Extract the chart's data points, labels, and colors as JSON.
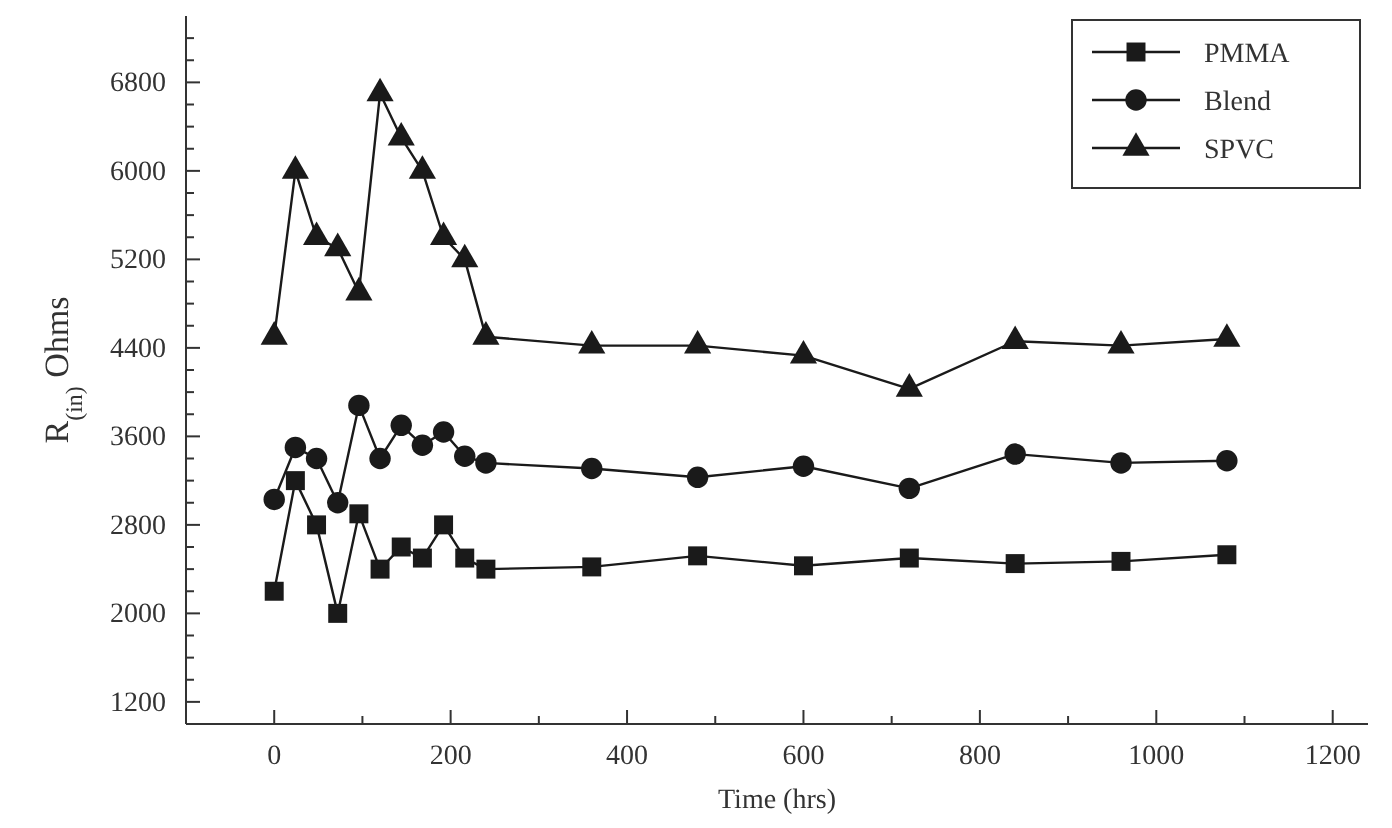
{
  "chart_data": {
    "type": "line",
    "xlabel": "Time (hrs)",
    "ylabel": "R$_{(in)}$ Ohms",
    "x": [
      0,
      24,
      48,
      72,
      96,
      120,
      144,
      168,
      192,
      216,
      240,
      360,
      480,
      600,
      720,
      840,
      960,
      1080
    ],
    "series": [
      {
        "name": "PMMA",
        "color": "#1a1a1a",
        "marker": "square",
        "values": [
          2200,
          3200,
          2800,
          2000,
          2900,
          2400,
          2600,
          2500,
          2800,
          2500,
          2400,
          2420,
          2520,
          2430,
          2500,
          2450,
          2470,
          2530
        ]
      },
      {
        "name": "Blend",
        "color": "#1a1a1a",
        "marker": "circle",
        "values": [
          3030,
          3500,
          3400,
          3000,
          3880,
          3400,
          3700,
          3520,
          3640,
          3420,
          3360,
          3310,
          3230,
          3330,
          3130,
          3440,
          3360,
          3380
        ]
      },
      {
        "name": "SPVC",
        "color": "#1a1a1a",
        "marker": "triangle",
        "values": [
          4500,
          6000,
          5400,
          5300,
          4900,
          6700,
          6300,
          6000,
          5400,
          5200,
          4500,
          4420,
          4420,
          4330,
          4030,
          4460,
          4420,
          4480
        ]
      }
    ],
    "xlim": [
      -100,
      1240
    ],
    "ylim": [
      1000,
      7400
    ],
    "xticks": [
      0,
      {
        "value": 100,
        "label": null
      },
      200,
      {
        "value": 300,
        "label": null
      },
      400,
      {
        "value": 500,
        "label": null
      },
      600,
      {
        "value": 700,
        "label": null
      },
      800,
      {
        "value": 900,
        "label": null
      },
      1000,
      {
        "value": 1100,
        "label": null
      },
      1200
    ],
    "yticks": [
      {
        "value": 1000,
        "label": null
      },
      1200,
      {
        "value": 1400,
        "label": null
      },
      {
        "value": 1600,
        "label": null
      },
      {
        "value": 1800,
        "label": null
      },
      2000,
      {
        "value": 2200,
        "label": null
      },
      {
        "value": 2400,
        "label": null
      },
      {
        "value": 2600,
        "label": null
      },
      2800,
      {
        "value": 3000,
        "label": null
      },
      {
        "value": 3200,
        "label": null
      },
      {
        "value": 3400,
        "label": null
      },
      3600,
      {
        "value": 3800,
        "label": null
      },
      {
        "value": 4000,
        "label": null
      },
      {
        "value": 4200,
        "label": null
      },
      4400,
      {
        "value": 4600,
        "label": null
      },
      {
        "value": 4800,
        "label": null
      },
      {
        "value": 5000,
        "label": null
      },
      5200,
      {
        "value": 5400,
        "label": null
      },
      {
        "value": 5600,
        "label": null
      },
      {
        "value": 5800,
        "label": null
      },
      6000,
      {
        "value": 6200,
        "label": null
      },
      {
        "value": 6400,
        "label": null
      },
      {
        "value": 6600,
        "label": null
      },
      6800,
      {
        "value": 7000,
        "label": null
      },
      {
        "value": 7200,
        "label": null
      }
    ],
    "legend": "top right",
    "grid": false,
    "line_style": "solid"
  }
}
